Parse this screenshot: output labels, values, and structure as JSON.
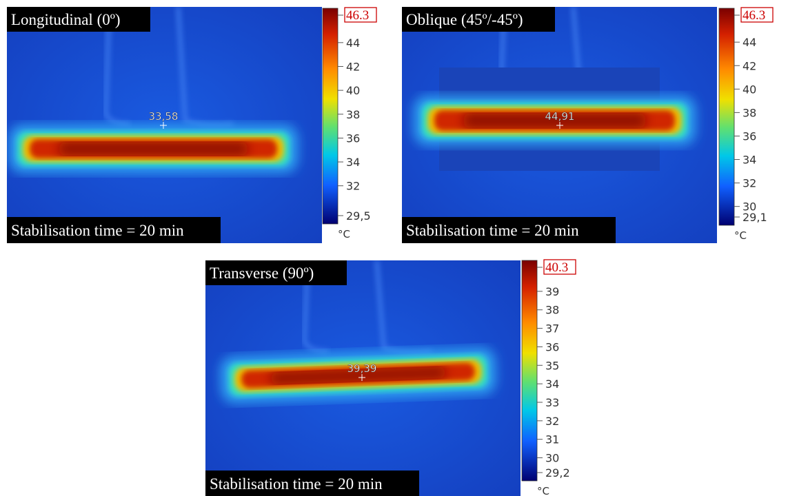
{
  "panels": [
    {
      "title": "Longitudinal (0º)",
      "caption": "Stabilisation time = 20 min",
      "spot": "33,58",
      "scale": {
        "max": 46.3,
        "min": {
          "value": 29.5,
          "label": "29,5"
        },
        "ticks": [
          44,
          42,
          40,
          38,
          36,
          34,
          32
        ],
        "unit": "°C"
      }
    },
    {
      "title": "Oblique (45º/-45º)",
      "caption": "Stabilisation time = 20 min",
      "spot": "44,91",
      "scale": {
        "max": 46.3,
        "min": {
          "value": 29.1,
          "label": "29,1"
        },
        "ticks": [
          44,
          42,
          40,
          38,
          36,
          34,
          32,
          30
        ],
        "unit": "°C"
      }
    },
    {
      "title": "Transverse (90º)",
      "caption": "Stabilisation time = 20 min",
      "spot": "39,39",
      "scale": {
        "max": 40.3,
        "min": {
          "value": 29.2,
          "label": "29,2"
        },
        "ticks": [
          39,
          38,
          37,
          36,
          35,
          34,
          33,
          32,
          31,
          30
        ],
        "unit": "°C"
      }
    }
  ]
}
